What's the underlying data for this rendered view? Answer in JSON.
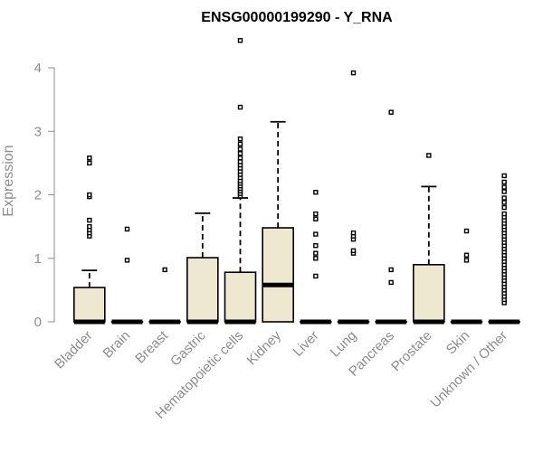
{
  "chart_data": {
    "type": "boxplot",
    "title": "ENSG00000199290 - Y_RNA",
    "ylabel": "Expression",
    "xlabel": "",
    "ylim": [
      0,
      4.4
    ],
    "yticks": [
      0,
      1,
      2,
      3,
      4
    ],
    "grid": false,
    "box_fill": "#efe8d0",
    "box_stroke": "#000000",
    "categories": [
      "Bladder",
      "Brain",
      "Breast",
      "Gastric",
      "Hematopoietic cells",
      "Kidney",
      "Liver",
      "Lung",
      "Pancreas",
      "Prostate",
      "Skin",
      "Unknown / Other"
    ],
    "boxes": [
      {
        "q1": 0,
        "median": 0,
        "q3": 0.54,
        "whisker_low": 0,
        "whisker_high": 0.81,
        "outliers": [
          1.35,
          1.4,
          1.45,
          1.5,
          1.6,
          1.97,
          2.0,
          2.5,
          2.58
        ]
      },
      {
        "q1": 0,
        "median": 0,
        "q3": 0,
        "whisker_low": 0,
        "whisker_high": 0,
        "outliers": [
          0.97,
          1.46
        ]
      },
      {
        "q1": 0,
        "median": 0,
        "q3": 0,
        "whisker_low": 0,
        "whisker_high": 0,
        "outliers": [
          0.82
        ]
      },
      {
        "q1": 0,
        "median": 0,
        "q3": 1.01,
        "whisker_low": 0,
        "whisker_high": 1.71,
        "outliers": []
      },
      {
        "q1": 0,
        "median": 0,
        "q3": 0.78,
        "whisker_low": 0,
        "whisker_high": 1.95,
        "outliers": [
          1.98,
          2.02,
          2.06,
          2.1,
          2.14,
          2.18,
          2.22,
          2.27,
          2.32,
          2.37,
          2.42,
          2.47,
          2.52,
          2.58,
          2.65,
          2.72,
          2.8,
          2.88,
          3.38,
          4.43
        ]
      },
      {
        "q1": 0,
        "median": 0.58,
        "q3": 1.48,
        "whisker_low": 0,
        "whisker_high": 3.15,
        "outliers": []
      },
      {
        "q1": 0,
        "median": 0,
        "q3": 0,
        "whisker_low": 0,
        "whisker_high": 0,
        "outliers": [
          0.72,
          1.0,
          1.08,
          1.2,
          1.38,
          1.62,
          1.7,
          2.04
        ]
      },
      {
        "q1": 0,
        "median": 0,
        "q3": 0,
        "whisker_low": 0,
        "whisker_high": 0,
        "outliers": [
          1.08,
          1.12,
          1.3,
          1.35,
          1.4,
          3.92
        ]
      },
      {
        "q1": 0,
        "median": 0,
        "q3": 0,
        "whisker_low": 0,
        "whisker_high": 0,
        "outliers": [
          0.62,
          0.82,
          3.3
        ]
      },
      {
        "q1": 0,
        "median": 0,
        "q3": 0.9,
        "whisker_low": 0,
        "whisker_high": 2.13,
        "outliers": [
          2.62
        ]
      },
      {
        "q1": 0,
        "median": 0,
        "q3": 0,
        "whisker_low": 0,
        "whisker_high": 0,
        "outliers": [
          0.97,
          1.05,
          1.43
        ]
      },
      {
        "q1": 0,
        "median": 0,
        "q3": 0,
        "whisker_low": 0,
        "whisker_high": 0,
        "outliers": [
          0.3,
          0.35,
          0.4,
          0.45,
          0.5,
          0.55,
          0.6,
          0.65,
          0.7,
          0.75,
          0.8,
          0.85,
          0.9,
          0.95,
          1.0,
          1.05,
          1.1,
          1.15,
          1.2,
          1.25,
          1.3,
          1.35,
          1.4,
          1.45,
          1.5,
          1.55,
          1.6,
          1.65,
          1.7,
          1.8,
          1.88,
          1.95,
          2.05,
          2.12,
          2.2,
          2.3
        ]
      }
    ]
  }
}
